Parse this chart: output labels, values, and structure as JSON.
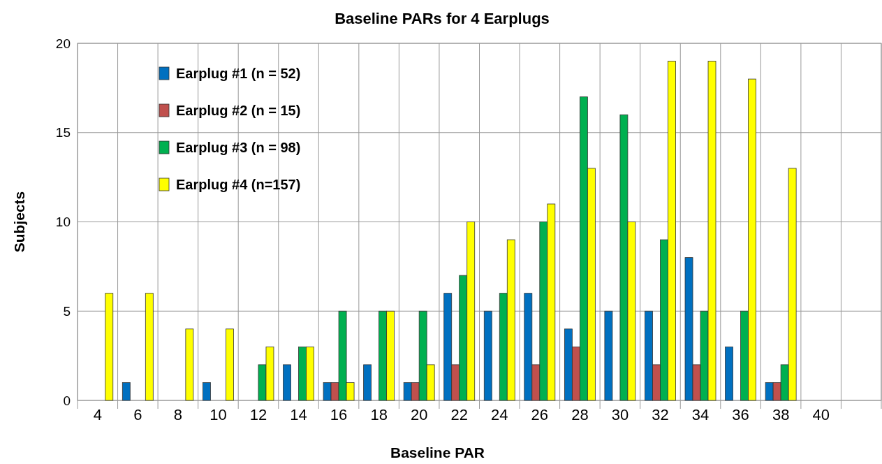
{
  "chart_data": {
    "type": "bar",
    "title": "Baseline PARs for 4 Earplugs",
    "xlabel": "Baseline PAR",
    "ylabel": "Subjects",
    "categories": [
      "4",
      "6",
      "8",
      "10",
      "12",
      "14",
      "16",
      "18",
      "20",
      "22",
      "24",
      "26",
      "28",
      "30",
      "32",
      "34",
      "36",
      "38",
      "40",
      null
    ],
    "series": [
      {
        "name": "Earplug #1 (n = 52)",
        "color": "#0070c0",
        "values": [
          null,
          1,
          null,
          1,
          null,
          2,
          1,
          2,
          1,
          6,
          5,
          6,
          4,
          5,
          5,
          8,
          3,
          1,
          null,
          null
        ]
      },
      {
        "name": "Earplug #2 (n = 15)",
        "color": "#c0504d",
        "values": [
          null,
          null,
          null,
          null,
          null,
          null,
          1,
          null,
          1,
          2,
          null,
          2,
          3,
          null,
          2,
          2,
          null,
          1,
          null,
          null
        ]
      },
      {
        "name": "Earplug #3 (n = 98)",
        "color": "#00b050",
        "values": [
          null,
          null,
          null,
          null,
          2,
          3,
          5,
          5,
          5,
          7,
          6,
          10,
          17,
          16,
          9,
          5,
          5,
          2,
          null,
          null
        ]
      },
      {
        "name": "Earplug #4 (n=157)",
        "color": "#ffff00",
        "values": [
          6,
          6,
          4,
          4,
          3,
          3,
          1,
          5,
          2,
          10,
          9,
          11,
          13,
          10,
          19,
          19,
          18,
          13,
          null,
          null
        ]
      }
    ],
    "ylim": [
      0,
      20
    ],
    "yticks": [
      0,
      5,
      10,
      15,
      20
    ],
    "grid": true,
    "legend": "top left"
  }
}
